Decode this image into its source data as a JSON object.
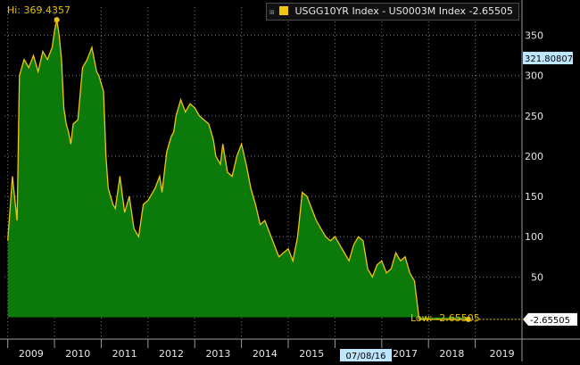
{
  "colors": {
    "background": "#000000",
    "fill": "#0b7a0b",
    "line": "#f1c40f",
    "grid": "#7a7a7a",
    "axis_text": "#e6e6e6",
    "hi_low_text": "#e6c200",
    "last_tag_bg": "#bfe6ff",
    "low_tag_bg": "#ffffff"
  },
  "legend": {
    "icon": "expand-icon",
    "label": "USGG10YR Index - US0003M Index -2.65505"
  },
  "annotations": {
    "hi_label": "Hi: 369.4357",
    "low_label": "Low: -2.65505",
    "last_value_tag": "321.80807",
    "current_value_tag": "-2.65505",
    "date_tag": "07/08/16"
  },
  "chart_data": {
    "type": "area",
    "title": "",
    "xlabel": "",
    "ylabel": "",
    "series": [
      {
        "name": "USGG10YR Index - US0003M Index",
        "x": [
          2009.0,
          2009.1,
          2009.2,
          2009.25,
          2009.35,
          2009.45,
          2009.55,
          2009.65,
          2009.75,
          2009.85,
          2009.95,
          2010.0,
          2010.05,
          2010.1,
          2010.15,
          2010.2,
          2010.25,
          2010.3,
          2010.35,
          2010.4,
          2010.5,
          2010.6,
          2010.7,
          2010.8,
          2010.9,
          2010.95,
          2011.0,
          2011.05,
          2011.1,
          2011.15,
          2011.2,
          2011.25,
          2011.3,
          2011.4,
          2011.5,
          2011.6,
          2011.7,
          2011.8,
          2011.9,
          2012.0,
          2012.1,
          2012.15,
          2012.25,
          2012.3,
          2012.4,
          2012.5,
          2012.55,
          2012.6,
          2012.7,
          2012.8,
          2012.9,
          2013.0,
          2013.1,
          2013.2,
          2013.3,
          2013.4,
          2013.45,
          2013.55,
          2013.6,
          2013.7,
          2013.8,
          2013.9,
          2014.0,
          2014.1,
          2014.2,
          2014.3,
          2014.4,
          2014.5,
          2014.6,
          2014.7,
          2014.8,
          2014.9,
          2015.0,
          2015.1,
          2015.2,
          2015.3,
          2015.4,
          2015.5,
          2015.6,
          2015.7,
          2015.8,
          2015.9,
          2016.0,
          2016.1,
          2016.2,
          2016.3,
          2016.4,
          2016.5,
          2016.6,
          2016.7,
          2016.8,
          2016.9,
          2017.0,
          2017.1,
          2017.2,
          2017.3,
          2017.4,
          2017.5,
          2017.6,
          2017.7,
          2017.8,
          2017.9,
          2018.0,
          2018.05,
          2018.1,
          2018.2,
          2018.3,
          2018.4,
          2018.5,
          2018.6,
          2018.7,
          2018.8,
          2018.85
        ],
        "y": [
          95,
          175,
          120,
          300,
          320,
          310,
          325,
          305,
          330,
          320,
          335,
          355,
          369.4,
          350,
          320,
          260,
          240,
          230,
          215,
          240,
          245,
          310,
          320,
          335,
          305,
          300,
          290,
          280,
          200,
          160,
          150,
          140,
          135,
          175,
          130,
          150,
          110,
          100,
          140,
          145,
          155,
          160,
          175,
          155,
          205,
          225,
          230,
          250,
          270,
          255,
          265,
          260,
          250,
          245,
          240,
          220,
          200,
          190,
          215,
          180,
          175,
          200,
          215,
          190,
          160,
          140,
          115,
          120,
          105,
          90,
          75,
          80,
          85,
          70,
          100,
          155,
          150,
          135,
          120,
          110,
          100,
          95,
          100,
          90,
          80,
          70,
          90,
          100,
          95,
          60,
          50,
          65,
          70,
          55,
          60,
          80,
          70,
          75,
          55,
          45,
          -2.65505,
          -2.65505,
          -2.65505,
          -2.65505,
          -2.65505,
          -2.65505,
          -2.65505,
          -2.65505,
          -2.65505,
          -2.65505,
          -2.65505,
          -2.65505,
          -2.65505
        ]
      }
    ],
    "x_ticks": [
      "2009",
      "2010",
      "2011",
      "2012",
      "2013",
      "2014",
      "2015",
      "2016",
      "2017",
      "2018",
      "2019"
    ],
    "y_ticks": [
      50,
      100,
      150,
      200,
      250,
      300,
      350
    ],
    "xlim": [
      2008.93,
      2020.0
    ],
    "ylim": [
      -25,
      385
    ],
    "grid": true,
    "legend_position": "top-right"
  }
}
